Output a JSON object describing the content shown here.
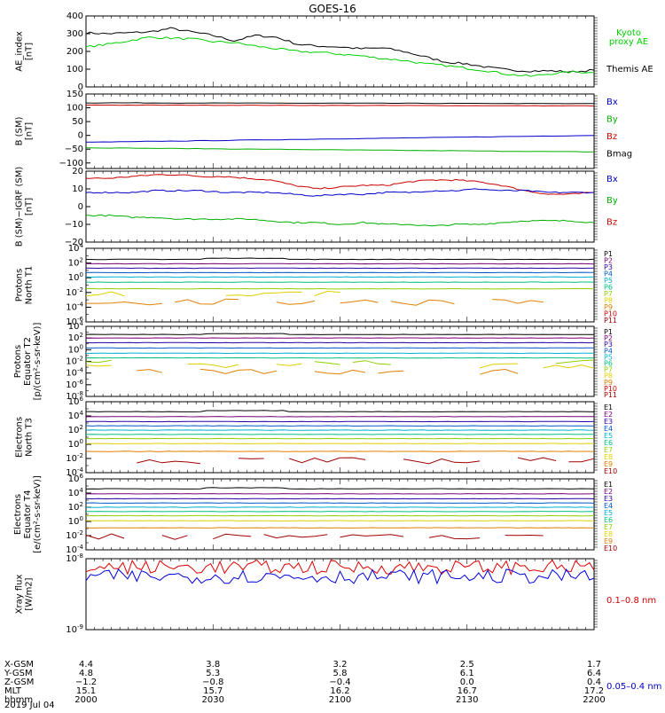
{
  "title": "GOES-16",
  "chart_data": [
    {
      "type": "line",
      "panel": "ae",
      "ylabel": [
        "AE_index",
        "[nT]"
      ],
      "yticks": [
        "400",
        "300",
        "200",
        "100",
        "0"
      ],
      "ylim": [
        0,
        400
      ],
      "x_minutes": [
        0,
        5,
        10,
        15,
        20,
        25,
        30,
        35,
        40,
        45,
        50,
        55,
        60,
        65,
        70,
        75,
        80,
        85,
        90,
        95,
        100,
        105,
        110,
        115,
        120
      ],
      "legend_right": [
        {
          "text": "Kyoto",
          "color": "#00d000"
        },
        {
          "text": "proxy AE",
          "color": "#00d000"
        },
        {
          "text": "Themis AE",
          "color": "#000000"
        }
      ],
      "series": [
        {
          "name": "Themis AE",
          "color": "#000000",
          "values": [
            305,
            300,
            305,
            310,
            330,
            310,
            290,
            260,
            290,
            280,
            240,
            230,
            225,
            215,
            220,
            200,
            170,
            140,
            130,
            110,
            95,
            90,
            90,
            85,
            95
          ]
        },
        {
          "name": "Kyoto proxy AE",
          "color": "#00d000",
          "values": [
            225,
            240,
            260,
            280,
            275,
            270,
            255,
            250,
            230,
            215,
            200,
            195,
            185,
            175,
            160,
            150,
            130,
            120,
            105,
            90,
            70,
            60,
            75,
            85,
            80
          ]
        }
      ]
    },
    {
      "type": "line",
      "panel": "b_sm",
      "ylabel": [
        "B (SM)",
        "[nT]"
      ],
      "yticks": [
        "150",
        "100",
        "50",
        "0",
        "−50",
        "−100"
      ],
      "ylim": [
        -120,
        150
      ],
      "legend_right": [
        {
          "text": "Bx",
          "color": "#0000cc"
        },
        {
          "text": "By",
          "color": "#00b000"
        },
        {
          "text": "Bz",
          "color": "#cc0000"
        },
        {
          "text": "Bmag",
          "color": "#000000"
        }
      ],
      "series": [
        {
          "name": "Bmag",
          "color": "#000000",
          "start": 118,
          "end": 115
        },
        {
          "name": "Bz",
          "color": "#cc0000",
          "start": 110,
          "end": 107
        },
        {
          "name": "Bx",
          "color": "#0000cc",
          "start": -25,
          "end": 0
        },
        {
          "name": "By",
          "color": "#00b000",
          "start": -45,
          "end": -60
        }
      ]
    },
    {
      "type": "line",
      "panel": "b_igrf",
      "ylabel": [
        "B (SM)−IGRF (SM)",
        "[nT]"
      ],
      "yticks": [
        "20",
        "10",
        "0",
        "−10",
        "−20"
      ],
      "ylim": [
        -20,
        20
      ],
      "legend_right": [
        {
          "text": "Bx",
          "color": "#0000cc"
        },
        {
          "text": "By",
          "color": "#00b000"
        },
        {
          "text": "Bz",
          "color": "#cc0000"
        }
      ],
      "series": [
        {
          "name": "Bz",
          "color": "#cc0000",
          "values": [
            16,
            16,
            17,
            18,
            18,
            17,
            17,
            16,
            15,
            12,
            10,
            11,
            12,
            12,
            14,
            15,
            15,
            14,
            12,
            9,
            7,
            7,
            8
          ]
        },
        {
          "name": "Bx",
          "color": "#0000cc",
          "values": [
            8,
            8,
            8,
            9,
            9,
            9,
            8,
            8,
            8,
            7,
            6,
            7,
            7,
            8,
            8,
            9,
            9,
            10,
            9,
            9,
            8,
            8,
            8
          ]
        },
        {
          "name": "By",
          "color": "#00b000",
          "values": [
            -5,
            -5,
            -6,
            -6,
            -7,
            -7,
            -7,
            -7,
            -8,
            -9,
            -9,
            -10,
            -9,
            -10,
            -10,
            -11,
            -10,
            -10,
            -9,
            -8,
            -8,
            -8,
            -9
          ]
        }
      ]
    },
    {
      "type": "line",
      "panel": "protons_t1",
      "log": true,
      "ylabel": [
        "Protons",
        "North T1"
      ],
      "yticks": [
        "10^4",
        "10^2",
        "10^0",
        "10^-2",
        "10^-4",
        "10^-6"
      ],
      "ylim_exp": [
        -6,
        4
      ],
      "channels": [
        {
          "name": "P1",
          "color": "#000000",
          "level": 2.5
        },
        {
          "name": "P2",
          "color": "#7a0078",
          "level": 1.9
        },
        {
          "name": "P3",
          "color": "#2a00a8",
          "level": 1.3
        },
        {
          "name": "P4",
          "color": "#0058c8",
          "level": 0.7
        },
        {
          "name": "P5",
          "color": "#00b0d0",
          "level": 0.1
        },
        {
          "name": "P6",
          "color": "#00c080",
          "level": -0.6
        },
        {
          "name": "P7",
          "color": "#90d000",
          "level": -1.5
        },
        {
          "name": "P8",
          "color": "#e0d000",
          "level": -2.2
        },
        {
          "name": "P9",
          "color": "#e08000",
          "level": -3.3
        },
        {
          "name": "P10",
          "color": "#d00000",
          "level": null
        },
        {
          "name": "P11",
          "color": "#a00000",
          "level": null
        }
      ]
    },
    {
      "type": "line",
      "panel": "protons_t2",
      "log": true,
      "ylabel": [
        "Protons",
        "Equator T2",
        "[p/(cm²-s-sr-keV)]"
      ],
      "yticks": [
        "10^4",
        "10^2",
        "10^0",
        "10^-2",
        "10^-4",
        "10^-6",
        "10^-8"
      ],
      "ylim_exp": [
        -8,
        4
      ],
      "channels": [
        {
          "name": "P1",
          "color": "#000000",
          "level": 2.6
        },
        {
          "name": "P2",
          "color": "#7a0078",
          "level": 2.0
        },
        {
          "name": "P3",
          "color": "#2a00a8",
          "level": 1.2
        },
        {
          "name": "P4",
          "color": "#0058c8",
          "level": 0.3
        },
        {
          "name": "P5",
          "color": "#00b0d0",
          "level": -0.6
        },
        {
          "name": "P6",
          "color": "#00c080",
          "level": -1.4
        },
        {
          "name": "P7",
          "color": "#90d000",
          "level": -2.2
        },
        {
          "name": "P8",
          "color": "#e0d000",
          "level": -2.8
        },
        {
          "name": "P9",
          "color": "#e08000",
          "level": -3.8
        },
        {
          "name": "P10",
          "color": "#d00000",
          "level": null
        },
        {
          "name": "P11",
          "color": "#a00000",
          "level": null
        }
      ]
    },
    {
      "type": "line",
      "panel": "electrons_t3",
      "log": true,
      "ylabel": [
        "Electrons",
        "North T3"
      ],
      "yticks": [
        "10^6",
        "10^4",
        "10^2",
        "10^0",
        "10^-2",
        "10^-4"
      ],
      "ylim_exp": [
        -4,
        6
      ],
      "channels": [
        {
          "name": "E1",
          "color": "#000000",
          "level": 4.6
        },
        {
          "name": "E2",
          "color": "#7a0078",
          "level": 3.9
        },
        {
          "name": "E3",
          "color": "#2a00a8",
          "level": 3.2
        },
        {
          "name": "E4",
          "color": "#0058c8",
          "level": 2.6
        },
        {
          "name": "E5",
          "color": "#00b0d0",
          "level": 2.0
        },
        {
          "name": "E6",
          "color": "#00c080",
          "level": 1.4
        },
        {
          "name": "E7",
          "color": "#90d000",
          "level": 0.8
        },
        {
          "name": "E8",
          "color": "#e0d000",
          "level": 0.1
        },
        {
          "name": "E9",
          "color": "#e08000",
          "level": -1.0
        },
        {
          "name": "E10",
          "color": "#a00000",
          "level": -2.3
        }
      ]
    },
    {
      "type": "line",
      "panel": "electrons_t4",
      "log": true,
      "ylabel": [
        "Electrons",
        "Equator T4",
        "[e/(cm²-s-sr-keV)]"
      ],
      "yticks": [
        "10^6",
        "10^4",
        "10^2",
        "10^0",
        "10^-2",
        "10^-4"
      ],
      "ylim_exp": [
        -4,
        6
      ],
      "channels": [
        {
          "name": "E1",
          "color": "#000000",
          "level": 4.6
        },
        {
          "name": "E2",
          "color": "#7a0078",
          "level": 3.9
        },
        {
          "name": "E3",
          "color": "#2a00a8",
          "level": 3.2
        },
        {
          "name": "E4",
          "color": "#0058c8",
          "level": 2.6
        },
        {
          "name": "E5",
          "color": "#00b0d0",
          "level": 2.0
        },
        {
          "name": "E6",
          "color": "#00c080",
          "level": 1.4
        },
        {
          "name": "E7",
          "color": "#90d000",
          "level": 0.8
        },
        {
          "name": "E8",
          "color": "#e0d000",
          "level": 0.1
        },
        {
          "name": "E9",
          "color": "#e08000",
          "level": -0.9
        },
        {
          "name": "E10",
          "color": "#a00000",
          "level": -2.1
        }
      ]
    },
    {
      "type": "line",
      "panel": "xray",
      "log": true,
      "ylabel": [
        "Xray flux",
        "[W/m2]"
      ],
      "yticks": [
        "10^-8",
        "10^-9"
      ],
      "ylim_exp": [
        -9,
        -8
      ],
      "legend_right": [
        {
          "text": "0.1–0.8 nm",
          "color": "#cc0000"
        },
        {
          "text": "0.05–0.4 nm",
          "color": "#0000cc"
        }
      ],
      "series": [
        {
          "name": "0.1–0.8 nm",
          "color": "#dd0000",
          "exp_mean": -8.12
        },
        {
          "name": "0.05–0.4 nm",
          "color": "#0000dd",
          "exp_mean": -8.25
        }
      ]
    }
  ],
  "x_axis": {
    "label_rows": [
      "X-GSM",
      "Y-GSM",
      "Z-GSM",
      "MLT",
      "hhmm",
      "2019 Jul 04"
    ],
    "columns": [
      [
        "4.4",
        "4.8",
        "−1.2",
        "15.1",
        "2000"
      ],
      [
        "3.8",
        "5.3",
        "−0.8",
        "15.7",
        "2030"
      ],
      [
        "3.2",
        "5.8",
        "−0.4",
        "16.2",
        "2100"
      ],
      [
        "2.5",
        "6.1",
        "0.0",
        "16.7",
        "2130"
      ],
      [
        "1.7",
        "6.4",
        "0.4",
        "17.2",
        "2200"
      ]
    ]
  }
}
